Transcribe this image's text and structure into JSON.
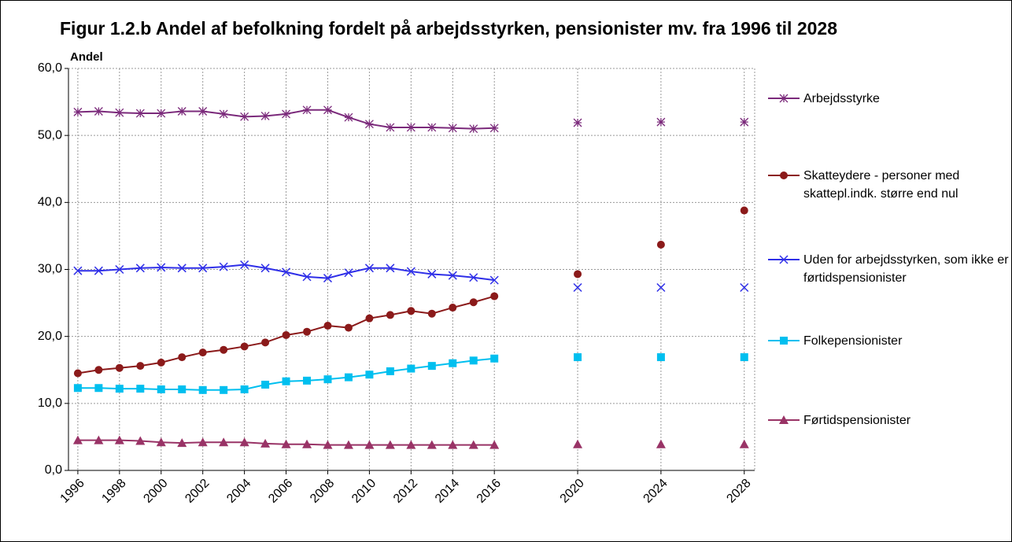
{
  "chart_data": {
    "type": "line",
    "title": "Figur 1.2.b Andel af befolkning fordelt på arbejdsstyrken, pensionister mv. fra 1996 til 2028",
    "y_label": "Andel",
    "x": [
      1996,
      1997,
      1998,
      1999,
      2000,
      2001,
      2002,
      2003,
      2004,
      2005,
      2006,
      2007,
      2008,
      2009,
      2010,
      2011,
      2012,
      2013,
      2014,
      2015,
      2016,
      2017,
      2018,
      2019,
      2020,
      2021,
      2022,
      2023,
      2024,
      2025,
      2026,
      2027,
      2028
    ],
    "xlim": [
      1995.55,
      2028.5
    ],
    "xticks": [
      1996,
      1998,
      2000,
      2002,
      2004,
      2006,
      2008,
      2010,
      2012,
      2014,
      2016,
      2020,
      2024,
      2028
    ],
    "ylim": [
      0,
      60
    ],
    "yticks": [
      {
        "value": 0,
        "label": "0,0"
      },
      {
        "value": 10,
        "label": "10,0"
      },
      {
        "value": 20,
        "label": "20,0"
      },
      {
        "value": 30,
        "label": "30,0"
      },
      {
        "value": 40,
        "label": "40,0"
      },
      {
        "value": 50,
        "label": "50,0"
      },
      {
        "value": 60,
        "label": "60,0"
      }
    ],
    "grid": true,
    "legend": "right",
    "series": [
      {
        "name": "Arbejdsstyrke",
        "color": "#7b2a7b",
        "marker": "star",
        "values": [
          53.5,
          53.6,
          53.4,
          53.3,
          53.3,
          53.6,
          53.6,
          53.2,
          52.8,
          52.9,
          53.2,
          53.8,
          53.8,
          52.7,
          51.7,
          51.2,
          51.2,
          51.2,
          51.1,
          51.0,
          51.1,
          null,
          null,
          null,
          51.9,
          null,
          null,
          null,
          52.0,
          null,
          null,
          null,
          52.0
        ]
      },
      {
        "name": "Skatteydere - personer med skattepl.indk. større end nul",
        "color": "#8b1a1a",
        "marker": "circle",
        "values": [
          14.5,
          15.0,
          15.3,
          15.6,
          16.1,
          16.9,
          17.6,
          18.0,
          18.5,
          19.1,
          20.2,
          20.7,
          21.6,
          21.3,
          22.7,
          23.2,
          23.8,
          23.4,
          24.3,
          25.1,
          26.0,
          null,
          null,
          null,
          29.3,
          null,
          null,
          null,
          33.7,
          null,
          null,
          null,
          38.8
        ]
      },
      {
        "name": "Uden for arbejdsstyrken, som ikke er førtidspensionister",
        "color": "#2f2fe8",
        "marker": "x",
        "values": [
          29.8,
          29.8,
          30.0,
          30.2,
          30.3,
          30.2,
          30.2,
          30.4,
          30.7,
          30.2,
          29.6,
          28.9,
          28.7,
          29.5,
          30.2,
          30.2,
          29.7,
          29.3,
          29.1,
          28.8,
          28.4,
          null,
          null,
          null,
          27.3,
          null,
          null,
          null,
          27.3,
          null,
          null,
          null,
          27.3
        ]
      },
      {
        "name": "Folkepensionister",
        "color": "#00bfef",
        "marker": "square",
        "values": [
          12.3,
          12.3,
          12.2,
          12.2,
          12.1,
          12.1,
          12.0,
          12.0,
          12.1,
          12.8,
          13.3,
          13.4,
          13.6,
          13.9,
          14.3,
          14.8,
          15.2,
          15.6,
          16.0,
          16.4,
          16.7,
          null,
          null,
          null,
          16.9,
          null,
          null,
          null,
          16.9,
          null,
          null,
          null,
          16.9
        ]
      },
      {
        "name": "Førtidspensionister",
        "color": "#993366",
        "marker": "triangle",
        "values": [
          4.5,
          4.5,
          4.5,
          4.4,
          4.2,
          4.1,
          4.2,
          4.2,
          4.2,
          4.0,
          3.9,
          3.9,
          3.8,
          3.8,
          3.8,
          3.8,
          3.8,
          3.8,
          3.8,
          3.8,
          3.8,
          null,
          null,
          null,
          3.9,
          null,
          null,
          null,
          3.9,
          null,
          null,
          null,
          3.9
        ]
      }
    ]
  }
}
